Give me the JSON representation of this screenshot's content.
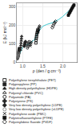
{
  "chart_data": {
    "type": "scatter",
    "xlabel": "ρ (den / g cm⁻³)",
    "ylabel": "E (kJ mol⁻¹)",
    "xlim": [
      0.85,
      2.35
    ],
    "ylim": [
      0,
      320
    ],
    "xticks": [
      {
        "value": 1.0,
        "label": "1.0"
      },
      1.5,
      {
        "value": 2.0,
        "label": "2.0"
      }
    ],
    "yticks": [
      0,
      100,
      200,
      300
    ],
    "grid": true,
    "series": [
      {
        "type": "line",
        "color": "#40c8d0",
        "x": [
          0.87,
          0.9,
          0.92,
          0.95,
          1.0,
          1.05,
          1.1,
          1.15,
          1.2,
          1.25,
          1.3,
          1.35,
          1.4,
          1.5,
          1.6,
          1.75,
          1.9,
          2.0,
          2.1,
          2.2,
          2.28
        ],
        "values": [
          18,
          35,
          45,
          58,
          80,
          92,
          95,
          100,
          105,
          115,
          125,
          148,
          168,
          195,
          205,
          215,
          232,
          248,
          268,
          285,
          305
        ]
      },
      {
        "name": "Polyethylene terephthalate (PET)",
        "marker": "square-open",
        "color": "#000000",
        "x": [
          1.33,
          1.335,
          1.34,
          1.345,
          1.35,
          1.36,
          1.37,
          1.38
        ],
        "values": [
          105,
          120,
          130,
          140,
          150,
          160,
          170,
          178
        ]
      },
      {
        "name": "Polypropylene (PP)",
        "marker": "square",
        "color": "#222222",
        "x": [
          0.895,
          0.9,
          0.905,
          0.91,
          0.915,
          0.918
        ],
        "values": [
          38,
          50,
          58,
          65,
          70,
          75
        ]
      },
      {
        "name": "High density polyethylene (HDPE)",
        "marker": "triangle-up",
        "color": "#222222",
        "x": [
          0.945,
          0.95,
          0.955,
          0.96,
          0.965,
          0.97,
          0.975
        ],
        "values": [
          68,
          80,
          92,
          105,
          118,
          130,
          142
        ]
      },
      {
        "name": "Polyvinyl chloride (PVC)",
        "marker": "triangle-up-open",
        "color": "#000000",
        "x": [
          1.38,
          1.39,
          1.4,
          1.41,
          1.42
        ],
        "values": [
          162,
          172,
          180,
          190,
          198
        ]
      },
      {
        "name": "Polyamide (PA)",
        "marker": "circle-open",
        "color": "#000000",
        "x": [
          1.12,
          1.13,
          1.14,
          1.15,
          1.16
        ],
        "values": [
          78,
          88,
          96,
          105,
          112
        ]
      },
      {
        "name": "Polystyrene (PS)",
        "marker": "cross",
        "color": "#222222",
        "x": [
          1.04,
          1.05,
          1.06,
          1.07
        ],
        "values": [
          88,
          96,
          105,
          112
        ]
      },
      {
        "name": "Very low density polyethylene (LDPE)",
        "marker": "diamond",
        "color": "#222222",
        "x": [
          0.87,
          0.875,
          0.88,
          0.885,
          0.89,
          0.895
        ],
        "values": [
          20,
          25,
          30,
          35,
          42,
          48
        ]
      },
      {
        "name": "Very low density polyethylene (vLDPE)",
        "marker": "circle-open",
        "color": "#777777",
        "x": [
          0.875,
          0.88,
          0.885,
          0.89,
          0.895,
          0.9
        ],
        "values": [
          22,
          28,
          33,
          38,
          44,
          50
        ]
      },
      {
        "name": "Polyethylene oxide (PMC)",
        "marker": "x-thin-open",
        "color": "#000000",
        "x": [
          1.19,
          1.2,
          1.21,
          1.22
        ],
        "values": [
          88,
          96,
          104,
          112
        ]
      },
      {
        "name": "Polytetrafluoroethylene (PTFE)",
        "marker": "square",
        "color": "#111111",
        "x": [
          2.14,
          2.16,
          2.18,
          2.2,
          2.22,
          2.24,
          2.26,
          2.28
        ],
        "values": [
          255,
          265,
          272,
          280,
          288,
          296,
          304,
          310
        ]
      },
      {
        "name": "Polyvinylidene fluoride (PVDF)",
        "marker": "diamond-open",
        "color": "#000000",
        "x": [
          1.74,
          1.76,
          1.78,
          1.8,
          1.82
        ],
        "values": [
          188,
          198,
          208,
          215,
          222
        ]
      }
    ]
  }
}
